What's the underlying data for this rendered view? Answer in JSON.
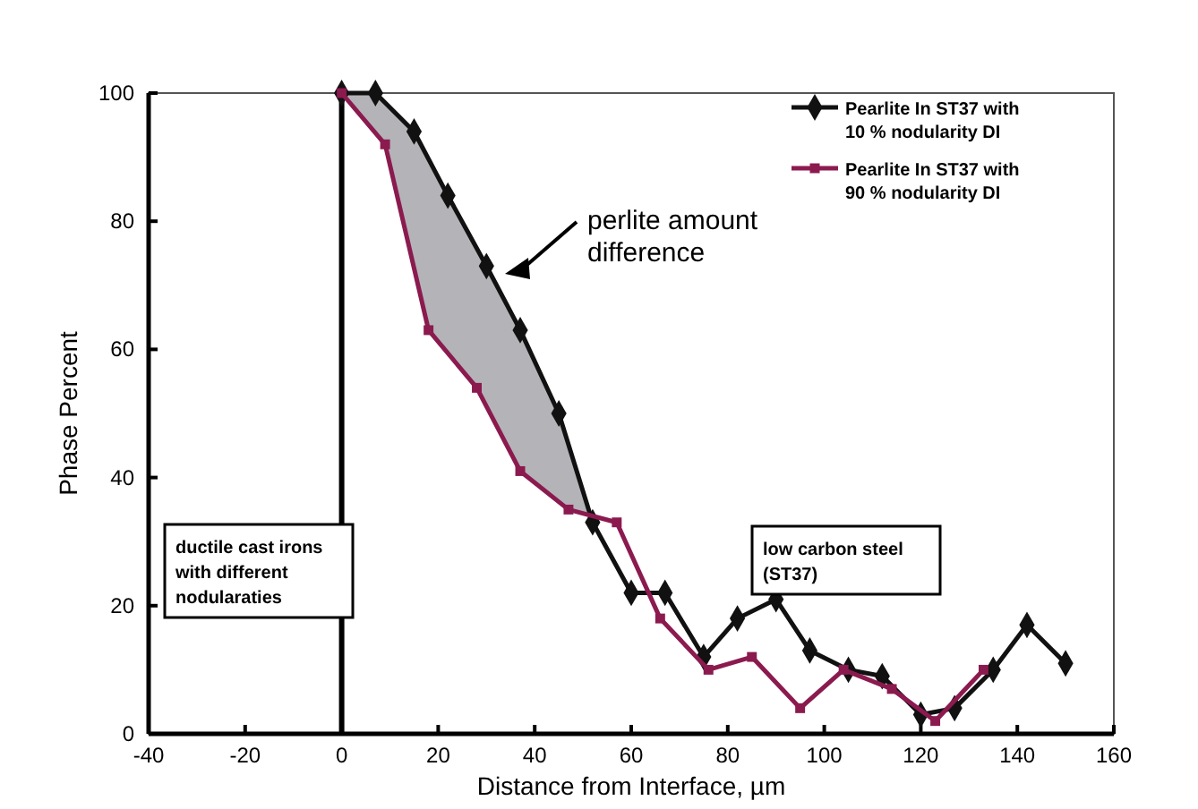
{
  "chart_data": {
    "type": "line",
    "xlabel": "Distance from Interface, µm",
    "ylabel": "Phase Percent",
    "xlim": [
      -40,
      160
    ],
    "xticks": [
      -40,
      -20,
      0,
      20,
      40,
      60,
      80,
      100,
      120,
      140,
      160
    ],
    "ylim": [
      0,
      100
    ],
    "yticks": [
      0,
      20,
      40,
      60,
      80,
      100
    ],
    "grid": false,
    "legend": "top right",
    "line_style": "solid",
    "series": [
      {
        "name": "Pearlite In ST37 with 10 % nodularity DI",
        "color": "#111111",
        "marker": "diamond",
        "x": [
          0,
          7,
          15,
          22,
          30,
          37,
          45,
          52,
          60,
          67,
          75,
          82,
          90,
          97,
          105,
          112,
          120,
          127,
          135,
          142,
          150
        ],
        "values": [
          100,
          100,
          94,
          84,
          73,
          63,
          50,
          33,
          22,
          22,
          12,
          18,
          21,
          13,
          10,
          9,
          3,
          4,
          10,
          17,
          11
        ]
      },
      {
        "name": "Pearlite In ST37 with 90 % nodularity DI",
        "color": "#8b1a4f",
        "marker": "square",
        "x": [
          0,
          9,
          18,
          28,
          37,
          47,
          57,
          66,
          76,
          85,
          95,
          104,
          114,
          123,
          133
        ],
        "values": [
          100,
          92,
          63,
          54,
          41,
          35,
          33,
          18,
          10,
          12,
          4,
          10,
          7,
          2,
          10
        ]
      }
    ],
    "ref_lines": [
      {
        "axis": "x",
        "value": 0,
        "color": "#000000"
      }
    ],
    "annotations": [
      "perlite amount\ndifference",
      "ductile cast irons\nwith different\nnodularaties",
      "low carbon steel\n(ST37)"
    ]
  }
}
